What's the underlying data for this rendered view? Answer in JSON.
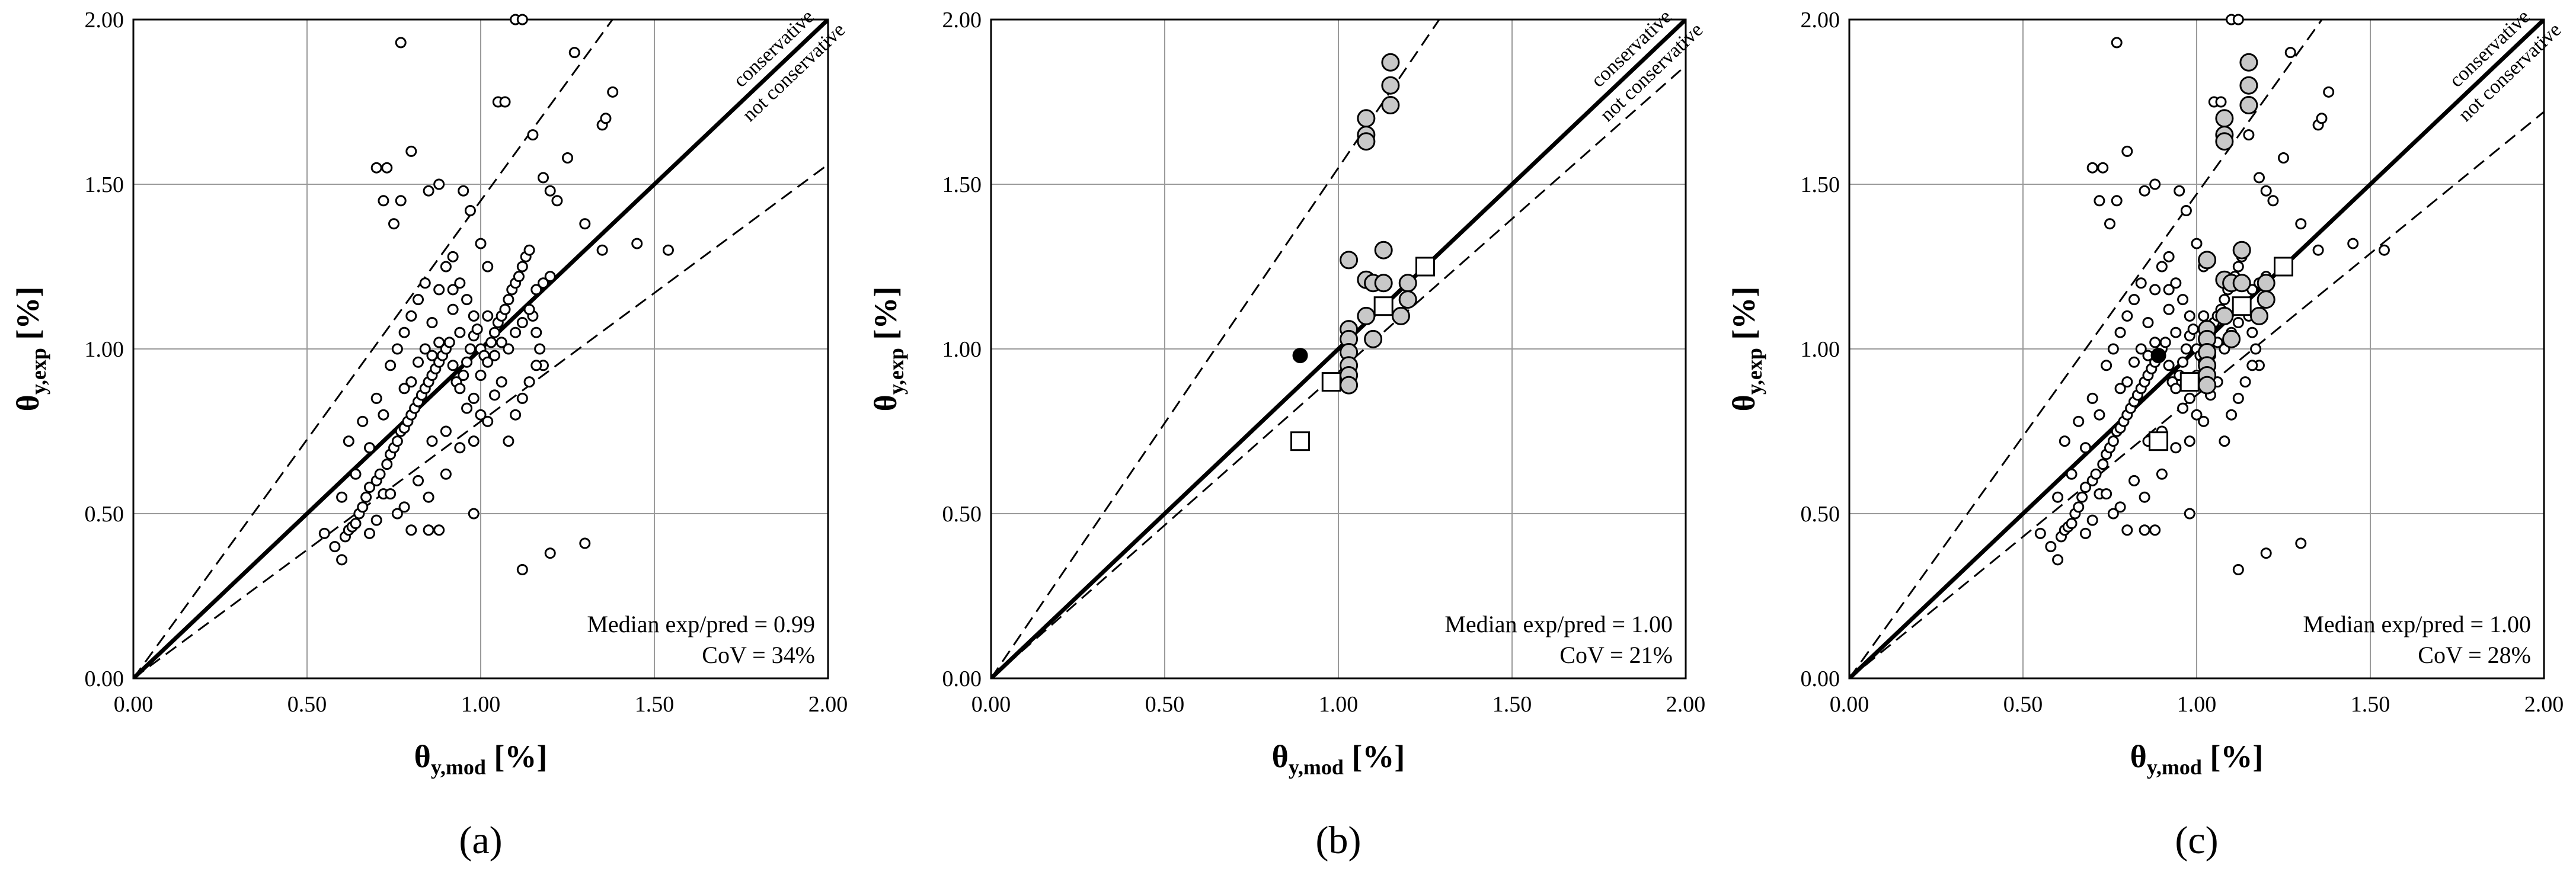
{
  "figure": {
    "panel_labels": [
      "(a)",
      "(b)",
      "(c)"
    ]
  },
  "chart_data": [
    {
      "type": "scatter",
      "panel": "(a)",
      "xlabel": "θ",
      "xlabel_sub": "y,mod",
      "xlabel_unit": "[%]",
      "ylabel": "θ",
      "ylabel_sub": "y,exp",
      "ylabel_unit": "[%]",
      "xlim": [
        0,
        2
      ],
      "ylim": [
        0,
        2
      ],
      "xticks": [
        "0.00",
        "0.50",
        "1.00",
        "1.50",
        "2.00"
      ],
      "yticks": [
        "0.00",
        "0.50",
        "1.00",
        "1.50",
        "2.00"
      ],
      "grid": true,
      "annotations": [
        "conservative",
        "not conservative"
      ],
      "stats": [
        "Median exp/pred = 0.99",
        "CoV = 34%"
      ],
      "lines": [
        {
          "name": "1:1",
          "style": "solid",
          "slope": 1.0
        },
        {
          "name": "upper bound",
          "style": "dashed",
          "slope": 1.45
        },
        {
          "name": "lower bound",
          "style": "dashed",
          "slope": 0.78
        }
      ],
      "series": [
        {
          "name": "database",
          "marker": "open-circle-small",
          "points": [
            [
              0.55,
              0.44
            ],
            [
              0.58,
              0.4
            ],
            [
              0.6,
              0.36
            ],
            [
              0.61,
              0.43
            ],
            [
              0.62,
              0.45
            ],
            [
              0.63,
              0.46
            ],
            [
              0.64,
              0.47
            ],
            [
              0.65,
              0.5
            ],
            [
              0.66,
              0.52
            ],
            [
              0.67,
              0.55
            ],
            [
              0.68,
              0.58
            ],
            [
              0.7,
              0.6
            ],
            [
              0.71,
              0.62
            ],
            [
              0.72,
              0.56
            ],
            [
              0.73,
              0.65
            ],
            [
              0.74,
              0.68
            ],
            [
              0.75,
              0.7
            ],
            [
              0.76,
              0.72
            ],
            [
              0.77,
              0.75
            ],
            [
              0.78,
              0.76
            ],
            [
              0.79,
              0.78
            ],
            [
              0.8,
              0.8
            ],
            [
              0.81,
              0.82
            ],
            [
              0.82,
              0.84
            ],
            [
              0.83,
              0.86
            ],
            [
              0.84,
              0.88
            ],
            [
              0.85,
              0.9
            ],
            [
              0.86,
              0.92
            ],
            [
              0.87,
              0.94
            ],
            [
              0.88,
              0.96
            ],
            [
              0.89,
              0.98
            ],
            [
              0.9,
              1.0
            ],
            [
              0.91,
              1.02
            ],
            [
              0.92,
              0.95
            ],
            [
              0.93,
              0.9
            ],
            [
              0.94,
              0.88
            ],
            [
              0.95,
              0.92
            ],
            [
              0.96,
              0.96
            ],
            [
              0.97,
              1.0
            ],
            [
              0.98,
              1.04
            ],
            [
              0.99,
              1.06
            ],
            [
              1.0,
              1.0
            ],
            [
              1.01,
              0.98
            ],
            [
              1.02,
              0.96
            ],
            [
              1.03,
              1.02
            ],
            [
              1.04,
              1.05
            ],
            [
              1.05,
              1.08
            ],
            [
              1.06,
              1.1
            ],
            [
              1.07,
              1.12
            ],
            [
              1.08,
              1.15
            ],
            [
              1.09,
              1.18
            ],
            [
              1.1,
              1.2
            ],
            [
              1.11,
              1.22
            ],
            [
              1.12,
              1.25
            ],
            [
              1.13,
              1.28
            ],
            [
              1.14,
              1.3
            ],
            [
              1.15,
              1.1
            ],
            [
              1.16,
              1.05
            ],
            [
              1.17,
              1.0
            ],
            [
              1.18,
              0.95
            ],
            [
              0.6,
              0.55
            ],
            [
              0.62,
              0.72
            ],
            [
              0.64,
              0.62
            ],
            [
              0.66,
              0.78
            ],
            [
              0.68,
              0.7
            ],
            [
              0.7,
              0.85
            ],
            [
              0.72,
              0.8
            ],
            [
              0.74,
              0.95
            ],
            [
              0.76,
              1.0
            ],
            [
              0.78,
              1.05
            ],
            [
              0.8,
              1.1
            ],
            [
              0.82,
              1.15
            ],
            [
              0.84,
              1.2
            ],
            [
              0.86,
              1.08
            ],
            [
              0.88,
              1.18
            ],
            [
              0.9,
              1.25
            ],
            [
              0.92,
              1.12
            ],
            [
              0.94,
              1.05
            ],
            [
              0.96,
              0.82
            ],
            [
              0.98,
              0.85
            ],
            [
              1.0,
              0.8
            ],
            [
              1.02,
              0.78
            ],
            [
              1.04,
              0.86
            ],
            [
              1.06,
              0.9
            ],
            [
              1.08,
              0.72
            ],
            [
              1.1,
              0.8
            ],
            [
              1.12,
              0.85
            ],
            [
              1.14,
              0.9
            ],
            [
              1.16,
              0.95
            ],
            [
              1.2,
              1.22
            ],
            [
              0.7,
              1.55
            ],
            [
              0.73,
              1.55
            ],
            [
              0.75,
              1.38
            ],
            [
              0.77,
              1.45
            ],
            [
              0.72,
              1.45
            ],
            [
              0.8,
              1.6
            ],
            [
              0.85,
              1.48
            ],
            [
              0.88,
              1.5
            ],
            [
              0.92,
              1.28
            ],
            [
              0.95,
              1.48
            ],
            [
              0.97,
              1.42
            ],
            [
              1.0,
              1.32
            ],
            [
              1.02,
              1.25
            ],
            [
              1.05,
              1.75
            ],
            [
              1.07,
              1.75
            ],
            [
              1.1,
              2.0
            ],
            [
              1.12,
              2.0
            ],
            [
              1.15,
              1.65
            ],
            [
              1.18,
              1.52
            ],
            [
              1.2,
              1.48
            ],
            [
              1.22,
              1.45
            ],
            [
              1.25,
              1.58
            ],
            [
              1.27,
              1.9
            ],
            [
              1.35,
              1.68
            ],
            [
              1.36,
              1.7
            ],
            [
              1.38,
              1.78
            ],
            [
              1.3,
              1.38
            ],
            [
              1.35,
              1.3
            ],
            [
              1.45,
              1.32
            ],
            [
              1.54,
              1.3
            ],
            [
              0.77,
              1.93
            ],
            [
              0.85,
              0.45
            ],
            [
              0.8,
              0.45
            ],
            [
              0.88,
              0.45
            ],
            [
              0.98,
              0.5
            ],
            [
              1.12,
              0.33
            ],
            [
              1.2,
              0.38
            ],
            [
              1.3,
              0.41
            ],
            [
              0.82,
              0.6
            ],
            [
              0.85,
              0.55
            ],
            [
              0.9,
              0.62
            ],
            [
              0.78,
              0.52
            ],
            [
              0.76,
              0.5
            ],
            [
              0.74,
              0.56
            ],
            [
              0.7,
              0.48
            ],
            [
              0.68,
              0.44
            ],
            [
              0.86,
              0.72
            ],
            [
              0.9,
              0.75
            ],
            [
              0.94,
              0.7
            ],
            [
              0.98,
              0.72
            ],
            [
              1.0,
              0.92
            ],
            [
              1.02,
              1.1
            ],
            [
              1.04,
              0.98
            ],
            [
              1.06,
              1.02
            ],
            [
              1.08,
              1.0
            ],
            [
              1.1,
              1.05
            ],
            [
              1.12,
              1.08
            ],
            [
              1.14,
              1.12
            ],
            [
              1.16,
              1.18
            ],
            [
              1.18,
              1.2
            ],
            [
              0.92,
              1.18
            ],
            [
              0.94,
              1.2
            ],
            [
              0.96,
              1.15
            ],
            [
              0.98,
              1.1
            ],
            [
              0.84,
              1.0
            ],
            [
              0.86,
              0.98
            ],
            [
              0.88,
              1.02
            ],
            [
              0.8,
              0.9
            ],
            [
              0.82,
              0.96
            ],
            [
              0.78,
              0.88
            ]
          ]
        }
      ]
    },
    {
      "type": "scatter",
      "panel": "(b)",
      "xlabel": "θ",
      "xlabel_sub": "y,mod",
      "xlabel_unit": "[%]",
      "ylabel": "θ",
      "ylabel_sub": "y,exp",
      "ylabel_unit": "[%]",
      "xlim": [
        0,
        2
      ],
      "ylim": [
        0,
        2
      ],
      "xticks": [
        "0.00",
        "0.50",
        "1.00",
        "1.50",
        "2.00"
      ],
      "yticks": [
        "0.00",
        "0.50",
        "1.00",
        "1.50",
        "2.00"
      ],
      "grid": true,
      "annotations": [
        "conservative",
        "not conservative"
      ],
      "stats": [
        "Median exp/pred = 1.00",
        "CoV = 21%"
      ],
      "lines": [
        {
          "name": "1:1",
          "style": "solid",
          "slope": 1.0
        },
        {
          "name": "upper bound",
          "style": "dashed",
          "slope": 1.55
        },
        {
          "name": "lower bound",
          "style": "dashed",
          "slope": 0.93
        }
      ],
      "series": [
        {
          "name": "gray circles",
          "marker": "gray-circle",
          "points": [
            [
              1.15,
              1.87
            ],
            [
              1.15,
              1.8
            ],
            [
              1.15,
              1.74
            ],
            [
              1.08,
              1.7
            ],
            [
              1.08,
              1.65
            ],
            [
              1.08,
              1.63
            ],
            [
              1.03,
              1.27
            ],
            [
              1.13,
              1.3
            ],
            [
              1.08,
              1.21
            ],
            [
              1.1,
              1.2
            ],
            [
              1.13,
              1.2
            ],
            [
              1.2,
              1.2
            ],
            [
              1.2,
              1.15
            ],
            [
              1.18,
              1.1
            ],
            [
              1.08,
              1.1
            ],
            [
              1.1,
              1.03
            ],
            [
              1.03,
              1.06
            ],
            [
              1.03,
              1.03
            ],
            [
              1.03,
              0.99
            ],
            [
              1.03,
              0.95
            ],
            [
              1.03,
              0.92
            ],
            [
              1.03,
              0.89
            ]
          ]
        },
        {
          "name": "open squares",
          "marker": "open-square",
          "points": [
            [
              1.25,
              1.25
            ],
            [
              1.13,
              1.13
            ],
            [
              0.98,
              0.9
            ],
            [
              0.89,
              0.72
            ]
          ]
        },
        {
          "name": "filled circle",
          "marker": "black-circle",
          "points": [
            [
              0.89,
              0.98
            ]
          ]
        }
      ]
    },
    {
      "type": "scatter",
      "panel": "(c)",
      "xlabel": "θ",
      "xlabel_sub": "y,mod",
      "xlabel_unit": "[%]",
      "ylabel": "θ",
      "ylabel_sub": "y,exp",
      "ylabel_unit": "[%]",
      "xlim": [
        0,
        2
      ],
      "ylim": [
        0,
        2
      ],
      "xticks": [
        "0.00",
        "0.50",
        "1.00",
        "1.50",
        "2.00"
      ],
      "yticks": [
        "0.00",
        "0.50",
        "1.00",
        "1.50",
        "2.00"
      ],
      "grid": true,
      "annotations": [
        "conservative",
        "not conservative"
      ],
      "stats": [
        "Median exp/pred = 1.00",
        "CoV = 28%"
      ],
      "lines": [
        {
          "name": "1:1",
          "style": "solid",
          "slope": 1.0
        },
        {
          "name": "upper bound",
          "style": "dashed",
          "slope": 1.47
        },
        {
          "name": "lower bound",
          "style": "dashed",
          "slope": 0.86
        }
      ],
      "series": [
        {
          "name": "database + new",
          "marker": "combined",
          "points": []
        }
      ]
    }
  ]
}
